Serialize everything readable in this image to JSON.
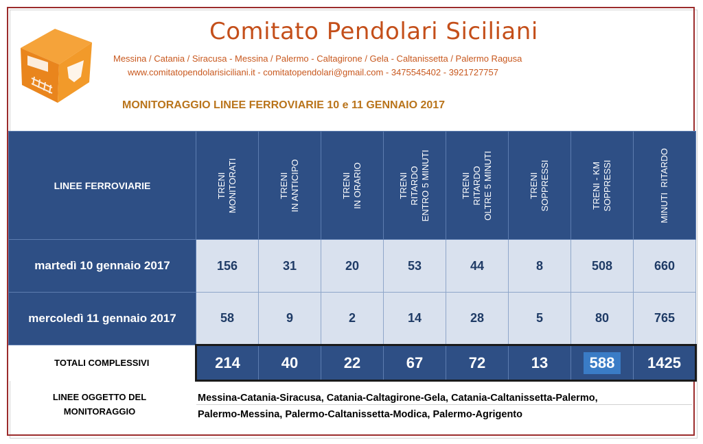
{
  "header": {
    "title": "Comitato Pendolari Siciliani",
    "routes": "Messina / Catania / Siracusa  -  Messina / Palermo  -  Caltagirone / Gela  -  Caltanissetta / Palermo Ragusa",
    "contacts": "www.comitatopendolarisiciliani.it  -  comitatopendolari@gmail.com   -  3475545402   -  3921727757",
    "monitoring_title": "MONITORAGGIO LINEE FERROVIARIE  10  e  11 GENNAIO 2017"
  },
  "table": {
    "first_header": "LINEE FERROVIARIE",
    "columns": [
      "TRENI\nMONITORATI",
      "TRENI\nIN ANTICIPO",
      "TRENI\nIN ORARIO",
      "TRENI\nRITARDO\nENTRO 5 MINUTI",
      "TRENI\nRITARDO\nOLTRE 5 MINUTI",
      "TRENI\nSOPPRESSI",
      "TRENI - KM\nSOPPRESSI",
      "MINUTI  RITARDO"
    ],
    "rows": [
      {
        "label": "martedì 10 gennaio 2017",
        "values": [
          "156",
          "31",
          "20",
          "53",
          "44",
          "8",
          "508",
          "660"
        ]
      },
      {
        "label": "mercoledì 11 gennaio 2017",
        "values": [
          "58",
          "9",
          "2",
          "14",
          "28",
          "5",
          "80",
          "765"
        ]
      }
    ],
    "totals": {
      "label": "TOTALI COMPLESSIVI",
      "values": [
        "214",
        "40",
        "22",
        "67",
        "72",
        "13",
        "588",
        "1425"
      ]
    }
  },
  "lines": {
    "label": "LINEE OGGETTO DEL\nMONITORAGGIO",
    "line1": "Messina-Catania-Siracusa, Catania-Caltagirone-Gela, Catania-Caltanissetta-Palermo,",
    "line2": "Palermo-Messina, Palermo-Caltanissetta-Modica, Palermo-Agrigento"
  },
  "colors": {
    "header_blue": "#2e4f85",
    "cell_light": "#d9e1ee",
    "title_orange": "#c44f1a",
    "highlight_blue": "#3a7cc6"
  }
}
